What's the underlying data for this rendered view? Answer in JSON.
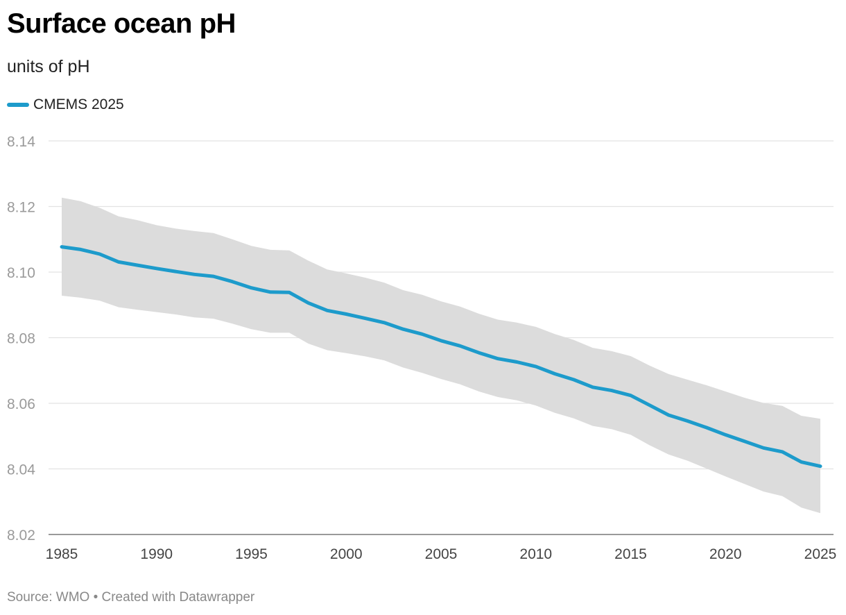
{
  "header": {
    "title": "Surface ocean pH",
    "subtitle": "units of pH"
  },
  "legend": {
    "label": "CMEMS 2025",
    "color": "#1d9bcb"
  },
  "footer": {
    "source": "Source: WMO • Created with Datawrapper"
  },
  "chart_data": {
    "type": "line",
    "title": "Surface ocean pH",
    "subtitle": "units of pH",
    "xlabel": "",
    "ylabel": "units of pH",
    "xlim": [
      1985,
      2025
    ],
    "ylim": [
      8.02,
      8.14
    ],
    "grid": true,
    "legend_position": "top-left",
    "y_ticks": [
      8.02,
      8.04,
      8.06,
      8.08,
      8.1,
      8.12,
      8.14
    ],
    "y_tick_labels": [
      "8.02",
      "8.04",
      "8.06",
      "8.08",
      "8.10",
      "8.12",
      "8.14"
    ],
    "x_ticks": [
      1985,
      1990,
      1995,
      2000,
      2005,
      2010,
      2015,
      2020,
      2025
    ],
    "x_tick_labels": [
      "1985",
      "1990",
      "1995",
      "2000",
      "2005",
      "2010",
      "2015",
      "2020",
      "2025"
    ],
    "x": [
      1985,
      1986,
      1987,
      1988,
      1989,
      1990,
      1991,
      1992,
      1993,
      1994,
      1995,
      1996,
      1997,
      1998,
      1999,
      2000,
      2001,
      2002,
      2003,
      2004,
      2005,
      2006,
      2007,
      2008,
      2009,
      2010,
      2011,
      2012,
      2013,
      2014,
      2015,
      2016,
      2017,
      2018,
      2019,
      2020,
      2021,
      2022,
      2023,
      2024,
      2025
    ],
    "series": [
      {
        "name": "CMEMS 2025",
        "color": "#1d9bcb",
        "values": [
          8.1077,
          8.1069,
          8.1055,
          8.1031,
          8.1021,
          8.1011,
          8.1002,
          8.0993,
          8.0987,
          8.0971,
          8.0952,
          8.0939,
          8.0938,
          8.0906,
          8.0883,
          8.0872,
          8.0859,
          8.0846,
          8.0826,
          8.0811,
          8.0791,
          8.0775,
          8.0754,
          8.0736,
          8.0726,
          8.0712,
          8.069,
          8.0672,
          8.0649,
          8.0639,
          8.0624,
          8.0594,
          8.0564,
          8.0546,
          8.0526,
          8.0504,
          8.0484,
          8.0464,
          8.0452,
          8.0421,
          8.0408
        ]
      }
    ],
    "uncertainty_band": {
      "color": "#dcdcdc",
      "upper": [
        8.1227,
        8.1216,
        8.1196,
        8.117,
        8.1158,
        8.1143,
        8.1133,
        8.1125,
        8.1119,
        8.11,
        8.108,
        8.1068,
        8.1066,
        8.1035,
        8.1008,
        8.0996,
        8.0983,
        8.0968,
        8.0945,
        8.0931,
        8.0911,
        8.0895,
        8.0873,
        8.0855,
        8.0846,
        8.0833,
        8.0811,
        8.0793,
        8.0769,
        8.0759,
        8.0744,
        8.0715,
        8.0689,
        8.0672,
        8.0655,
        8.0636,
        8.0617,
        8.0601,
        8.0592,
        8.0562,
        8.0553
      ],
      "lower": [
        8.0928,
        8.0922,
        8.0913,
        8.0893,
        8.0885,
        8.0878,
        8.0871,
        8.0862,
        8.0858,
        8.0843,
        8.0826,
        8.0815,
        8.0815,
        8.0782,
        8.0762,
        8.0753,
        8.0743,
        8.0731,
        8.0709,
        8.0693,
        8.0674,
        8.0658,
        8.0636,
        8.0619,
        8.0609,
        8.0593,
        8.0571,
        8.0554,
        8.0531,
        8.0521,
        8.0504,
        8.0472,
        8.0444,
        8.0425,
        8.0401,
        8.0377,
        8.0354,
        8.0331,
        8.0317,
        8.0282,
        8.0265
      ]
    }
  }
}
